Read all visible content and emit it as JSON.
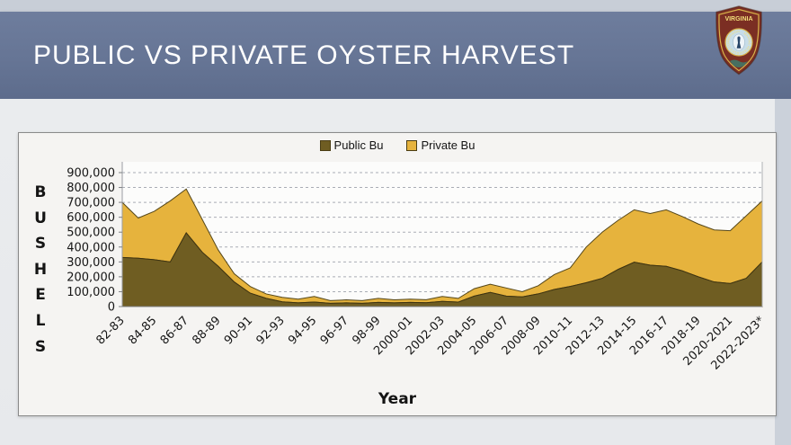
{
  "header": {
    "title": "PUBLIC VS PRIVATE OYSTER HARVEST"
  },
  "logo": {
    "top_text": "VIRGINIA",
    "ring_text": "MARINE RESOURCES COMMISSION"
  },
  "chart_data": {
    "type": "area",
    "stacked": true,
    "xlabel": "Year",
    "ylabel": "BUSHELS",
    "ylim": [
      0,
      900000
    ],
    "y_tick_step": 100000,
    "y_tick_labels": [
      "900,000",
      "800,000",
      "700,000",
      "600,000",
      "500,000",
      "400,000",
      "300,000",
      "200,000",
      "100,000",
      "0"
    ],
    "x_tick_labels": [
      "82-83",
      "84-85",
      "86-87",
      "88-89",
      "90-91",
      "92-93",
      "94-95",
      "96-97",
      "98-99",
      "2000-01",
      "2002-03",
      "2004-05",
      "2006-07",
      "2008-09",
      "2010-11",
      "2012-13",
      "2014-15",
      "2016-17",
      "2018-19",
      "2020-2021",
      "2022-2023*"
    ],
    "x_points_per_tick": 2,
    "n_points": 41,
    "grid": "dashed-horizontal",
    "legend_position": "top",
    "series": [
      {
        "name": "Public Bu",
        "color": "#6F5D22",
        "stroke": "#3E3310",
        "values": [
          330000,
          325000,
          315000,
          300000,
          495000,
          365000,
          270000,
          165000,
          90000,
          55000,
          32000,
          25000,
          30000,
          22000,
          25000,
          22000,
          28000,
          25000,
          28000,
          26000,
          35000,
          30000,
          70000,
          95000,
          70000,
          65000,
          85000,
          115000,
          135000,
          160000,
          190000,
          250000,
          298000,
          278000,
          270000,
          240000,
          200000,
          165000,
          155000,
          190000,
          300000
        ]
      },
      {
        "name": "Private Bu",
        "color": "#E6B33D",
        "stroke": "#55471A",
        "values": [
          370000,
          270000,
          325000,
          410000,
          295000,
          220000,
          110000,
          55000,
          45000,
          30000,
          30000,
          25000,
          38000,
          18000,
          20000,
          18000,
          27000,
          20000,
          22000,
          20000,
          33000,
          25000,
          50000,
          55000,
          55000,
          35000,
          55000,
          100000,
          125000,
          240000,
          310000,
          330000,
          352000,
          347000,
          380000,
          365000,
          355000,
          350000,
          355000,
          420000,
          410000
        ]
      }
    ]
  }
}
